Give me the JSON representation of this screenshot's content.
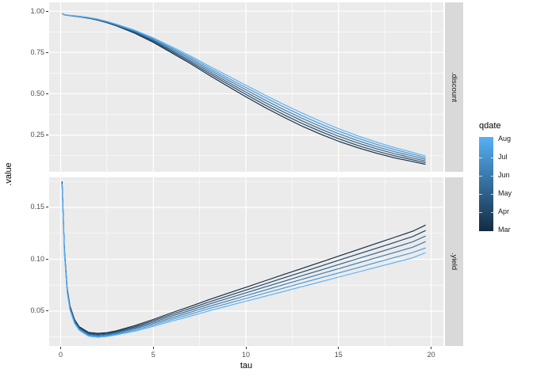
{
  "figure": {
    "y_axis_title": ".value",
    "x_axis_title": "tau",
    "panel_bg": "#EBEBEB",
    "strip_bg": "#D9D9D9",
    "grid_color": "#FFFFFF",
    "tick_label_color": "#4D4D4D"
  },
  "legend": {
    "title": "qdate",
    "labels": [
      "Aug",
      "Jul",
      "Jun",
      "May",
      "Apr",
      "Mar"
    ],
    "gradient_top": "#56B1F7",
    "gradient_bottom": "#132B43",
    "position": "right"
  },
  "chart_data": [
    {
      "type": "line",
      "facet": ".discount",
      "xlabel": "tau",
      "ylabel": ".value",
      "grid": true,
      "xlim": [
        -0.62,
        20.66
      ],
      "ylim": [
        0.028,
        1.053
      ],
      "x_ticks": [
        0,
        5,
        10,
        15,
        20
      ],
      "x_tick_labels": [
        "0",
        "5",
        "10",
        "15",
        "20"
      ],
      "x_minor_ticks": [
        2.5,
        7.5,
        12.5,
        17.5
      ],
      "y_ticks": [
        0.25,
        0.5,
        0.75,
        1.0
      ],
      "y_tick_labels": [
        "0.25",
        "0.50",
        "0.75",
        "1.00"
      ],
      "y_minor_ticks": [
        0.125,
        0.375,
        0.625,
        0.875
      ],
      "x": [
        0.08,
        0.2,
        0.35,
        0.5,
        0.75,
        1,
        1.5,
        2,
        2.5,
        3,
        4,
        5,
        6,
        7,
        8,
        9,
        10,
        11,
        12,
        13,
        14,
        15,
        16,
        17,
        18,
        19,
        19.7
      ],
      "series": [
        {
          "name": "Mar",
          "color": "#132B43",
          "values": [
            0.986,
            0.978,
            0.975,
            0.973,
            0.969,
            0.966,
            0.957,
            0.945,
            0.93,
            0.911,
            0.866,
            0.811,
            0.747,
            0.683,
            0.614,
            0.547,
            0.482,
            0.419,
            0.361,
            0.306,
            0.257,
            0.213,
            0.175,
            0.142,
            0.113,
            0.09,
            0.073
          ]
        },
        {
          "name": "Apr",
          "color": "#204667",
          "values": [
            0.986,
            0.978,
            0.975,
            0.973,
            0.97,
            0.967,
            0.958,
            0.946,
            0.932,
            0.913,
            0.87,
            0.816,
            0.755,
            0.692,
            0.625,
            0.56,
            0.496,
            0.434,
            0.376,
            0.322,
            0.273,
            0.228,
            0.189,
            0.155,
            0.125,
            0.101,
            0.083
          ]
        },
        {
          "name": "May",
          "color": "#2E618B",
          "values": [
            0.986,
            0.978,
            0.975,
            0.974,
            0.97,
            0.967,
            0.959,
            0.948,
            0.933,
            0.915,
            0.874,
            0.822,
            0.762,
            0.701,
            0.636,
            0.572,
            0.51,
            0.449,
            0.392,
            0.338,
            0.288,
            0.243,
            0.204,
            0.169,
            0.138,
            0.112,
            0.093
          ]
        },
        {
          "name": "Jun",
          "color": "#3B7BAF",
          "values": [
            0.986,
            0.979,
            0.976,
            0.974,
            0.971,
            0.968,
            0.96,
            0.949,
            0.935,
            0.918,
            0.877,
            0.827,
            0.77,
            0.711,
            0.647,
            0.585,
            0.524,
            0.464,
            0.407,
            0.353,
            0.304,
            0.259,
            0.218,
            0.182,
            0.15,
            0.124,
            0.103
          ]
        },
        {
          "name": "Jul",
          "color": "#4996D3",
          "values": [
            0.986,
            0.979,
            0.976,
            0.975,
            0.971,
            0.968,
            0.961,
            0.951,
            0.936,
            0.92,
            0.881,
            0.833,
            0.777,
            0.72,
            0.658,
            0.597,
            0.538,
            0.479,
            0.423,
            0.369,
            0.319,
            0.274,
            0.233,
            0.196,
            0.163,
            0.135,
            0.113
          ]
        },
        {
          "name": "Aug",
          "color": "#56B1F7",
          "values": [
            0.986,
            0.979,
            0.976,
            0.975,
            0.972,
            0.969,
            0.962,
            0.952,
            0.938,
            0.922,
            0.885,
            0.838,
            0.785,
            0.729,
            0.669,
            0.61,
            0.552,
            0.494,
            0.438,
            0.385,
            0.335,
            0.289,
            0.247,
            0.209,
            0.175,
            0.146,
            0.123
          ]
        }
      ]
    },
    {
      "type": "line",
      "facet": ".yield",
      "xlabel": "tau",
      "ylabel": ".value",
      "grid": true,
      "xlim": [
        -0.62,
        20.66
      ],
      "ylim": [
        0.0164,
        0.179
      ],
      "x_ticks": [
        0,
        5,
        10,
        15,
        20
      ],
      "x_tick_labels": [
        "0",
        "5",
        "10",
        "15",
        "20"
      ],
      "x_minor_ticks": [
        2.5,
        7.5,
        12.5,
        17.5
      ],
      "y_ticks": [
        0.05,
        0.1,
        0.15
      ],
      "y_tick_labels": [
        "0.05",
        "0.10",
        "0.15"
      ],
      "y_minor_ticks": [
        0.025,
        0.075,
        0.125,
        0.175
      ],
      "x": [
        0.08,
        0.2,
        0.35,
        0.5,
        0.75,
        1,
        1.5,
        2,
        2.5,
        3,
        4,
        5,
        6,
        7,
        8,
        9,
        10,
        11,
        12,
        13,
        14,
        15,
        16,
        17,
        18,
        19,
        19.7
      ],
      "series": [
        {
          "name": "Mar",
          "color": "#132B43",
          "values": [
            0.175,
            0.11,
            0.072,
            0.055,
            0.042,
            0.035,
            0.0295,
            0.0285,
            0.0292,
            0.031,
            0.036,
            0.042,
            0.0485,
            0.0545,
            0.061,
            0.067,
            0.073,
            0.079,
            0.085,
            0.091,
            0.097,
            0.103,
            0.109,
            0.115,
            0.121,
            0.127,
            0.133
          ]
        },
        {
          "name": "Apr",
          "color": "#204667",
          "values": [
            0.1744,
            0.1092,
            0.0712,
            0.0542,
            0.0412,
            0.0343,
            0.0288,
            0.0278,
            0.0285,
            0.0302,
            0.0349,
            0.0407,
            0.0469,
            0.0526,
            0.0588,
            0.0646,
            0.0703,
            0.076,
            0.0818,
            0.0875,
            0.0932,
            0.099,
            0.1047,
            0.1104,
            0.1161,
            0.1219,
            0.1277
          ]
        },
        {
          "name": "May",
          "color": "#2E618B",
          "values": [
            0.1738,
            0.1084,
            0.0704,
            0.0534,
            0.0404,
            0.0336,
            0.028,
            0.027,
            0.0277,
            0.0294,
            0.0338,
            0.0393,
            0.0453,
            0.0507,
            0.0567,
            0.0622,
            0.0676,
            0.0731,
            0.0785,
            0.084,
            0.0894,
            0.0949,
            0.1004,
            0.1058,
            0.1113,
            0.1168,
            0.1224
          ]
        },
        {
          "name": "Jun",
          "color": "#3B7BAF",
          "values": [
            0.1732,
            0.1076,
            0.0696,
            0.0526,
            0.0396,
            0.0329,
            0.0273,
            0.0263,
            0.027,
            0.0286,
            0.0328,
            0.038,
            0.0436,
            0.0489,
            0.0545,
            0.0597,
            0.0649,
            0.0701,
            0.0753,
            0.0805,
            0.0857,
            0.0909,
            0.0961,
            0.1013,
            0.1064,
            0.1116,
            0.117
          ]
        },
        {
          "name": "Jul",
          "color": "#4996D3",
          "values": [
            0.1726,
            0.1068,
            0.0688,
            0.0518,
            0.0388,
            0.0322,
            0.0265,
            0.0255,
            0.0262,
            0.0278,
            0.0317,
            0.0366,
            0.042,
            0.047,
            0.0524,
            0.0573,
            0.0622,
            0.0672,
            0.072,
            0.077,
            0.0819,
            0.0868,
            0.0917,
            0.0967,
            0.1016,
            0.1065,
            0.1109
          ]
        },
        {
          "name": "Aug",
          "color": "#56B1F7",
          "values": [
            0.172,
            0.106,
            0.068,
            0.051,
            0.038,
            0.0315,
            0.0258,
            0.0248,
            0.0255,
            0.027,
            0.0306,
            0.0353,
            0.0404,
            0.0451,
            0.0502,
            0.0549,
            0.0595,
            0.0642,
            0.0688,
            0.0735,
            0.0781,
            0.0828,
            0.0874,
            0.0921,
            0.0967,
            0.1014,
            0.1064
          ]
        }
      ]
    }
  ]
}
